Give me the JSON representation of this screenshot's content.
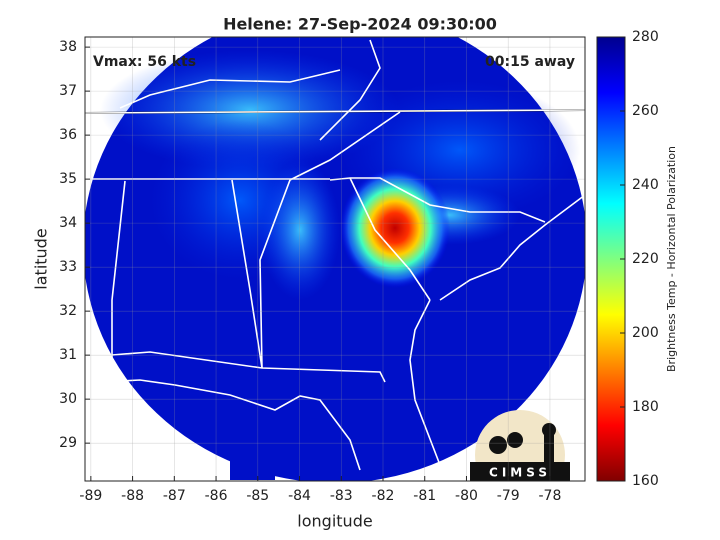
{
  "chart_data": {
    "type": "map",
    "title": "Helene: 27-Sep-2024 09:30:00",
    "xlabel": "longitude",
    "ylabel": "latitude",
    "xlim": [
      -89.14,
      -77.16
    ],
    "ylim": [
      28.14,
      38.23
    ],
    "xticks": [
      -89,
      -88,
      -87,
      -86,
      -85,
      -84,
      -83,
      -82,
      -81,
      -80,
      -79,
      -78
    ],
    "yticks": [
      29,
      30,
      31,
      32,
      33,
      34,
      35,
      36,
      37,
      38
    ],
    "grid": true,
    "annotations": [
      "Vmax: 56 kts",
      "00:15 away"
    ],
    "colorbar": {
      "label": "Brightness Temp - Horizontal Polarization",
      "lim": [
        160,
        280
      ],
      "ticks": [
        160,
        180,
        200,
        220,
        240,
        260,
        280
      ]
    },
    "logo": "CIMSS"
  }
}
